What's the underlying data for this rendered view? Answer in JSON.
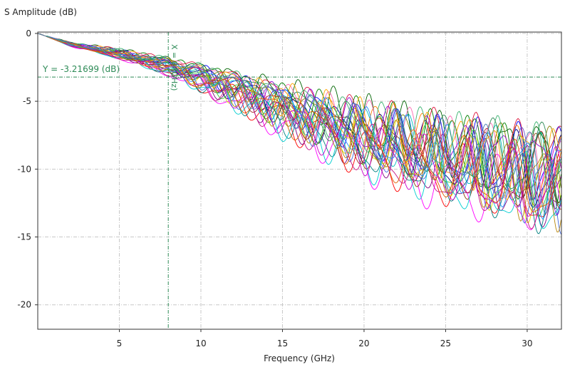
{
  "chart_data": {
    "type": "line",
    "ylabel": "S Amplitude (dB)",
    "xlabel": "Frequency (GHz)",
    "xlim": [
      0,
      32.1
    ],
    "ylim": [
      -21.8,
      0.1
    ],
    "xticks": [
      5,
      10,
      15,
      20,
      25,
      30
    ],
    "yticks": [
      0,
      -5,
      -10,
      -15,
      -20
    ],
    "grid": true,
    "legend": "none",
    "cursor": {
      "x": 8,
      "y": -3.21699,
      "y_label": "Y = -3.21699 (dB)",
      "x_label": "X = 8 (GHz)",
      "color": "#2e8b57"
    },
    "trend": [
      [
        0,
        0
      ],
      [
        2,
        -0.8
      ],
      [
        5,
        -1.5
      ],
      [
        8,
        -2.4
      ],
      [
        10,
        -3.2
      ],
      [
        12,
        -4.0
      ],
      [
        15,
        -5.4
      ],
      [
        18,
        -6.7
      ],
      [
        20,
        -7.6
      ],
      [
        25,
        -9.3
      ],
      [
        30,
        -10.3
      ],
      [
        32,
        -10.6
      ]
    ],
    "ripple_amplitude_db": [
      [
        0,
        0
      ],
      [
        8,
        0.3
      ],
      [
        12,
        0.8
      ],
      [
        20,
        1.6
      ],
      [
        30,
        2.4
      ],
      [
        32,
        2.6
      ]
    ],
    "series": [
      {
        "color": "#0000ff",
        "period": 2.4,
        "phase": 0.1,
        "offset": 0.6
      },
      {
        "color": "#ff0000",
        "period": 2.9,
        "phase": 1.3,
        "offset": -1.2
      },
      {
        "color": "#008000",
        "period": 2.2,
        "phase": 2.1,
        "offset": 0.9
      },
      {
        "color": "#ff00ff",
        "period": 3.1,
        "phase": 0.7,
        "offset": -1.6
      },
      {
        "color": "#00bfbf",
        "period": 2.6,
        "phase": 3.0,
        "offset": 0.2
      },
      {
        "color": "#e0e000",
        "period": 2.3,
        "phase": 4.2,
        "offset": -0.4
      },
      {
        "color": "#ff8000",
        "period": 2.8,
        "phase": 5.1,
        "offset": 0.4
      },
      {
        "color": "#800080",
        "period": 2.5,
        "phase": 1.9,
        "offset": -0.8
      },
      {
        "color": "#000080",
        "period": 2.7,
        "phase": 2.6,
        "offset": 0.0
      },
      {
        "color": "#006400",
        "period": 2.1,
        "phase": 3.7,
        "offset": 1.2
      },
      {
        "color": "#8b4513",
        "period": 3.0,
        "phase": 0.3,
        "offset": -0.2
      },
      {
        "color": "#ff69b4",
        "period": 2.4,
        "phase": 4.8,
        "offset": 0.7
      },
      {
        "color": "#008080",
        "period": 2.6,
        "phase": 5.7,
        "offset": -1.0
      },
      {
        "color": "#808000",
        "period": 2.9,
        "phase": 2.9,
        "offset": 0.3
      },
      {
        "color": "#4169e1",
        "period": 2.2,
        "phase": 0.9,
        "offset": -0.6
      },
      {
        "color": "#dc143c",
        "period": 2.5,
        "phase": 3.4,
        "offset": 1.0
      },
      {
        "color": "#32cd32",
        "period": 2.8,
        "phase": 4.5,
        "offset": -0.3
      },
      {
        "color": "#9400d3",
        "period": 2.3,
        "phase": 5.9,
        "offset": 0.5
      },
      {
        "color": "#00ced1",
        "period": 2.7,
        "phase": 1.1,
        "offset": -1.4
      },
      {
        "color": "#ffa500",
        "period": 2.0,
        "phase": 2.3,
        "offset": 0.8
      },
      {
        "color": "#a52a2a",
        "period": 3.2,
        "phase": 3.9,
        "offset": -0.1
      },
      {
        "color": "#1e90ff",
        "period": 2.4,
        "phase": 5.3,
        "offset": 0.1
      },
      {
        "color": "#cc00cc",
        "period": 2.6,
        "phase": 0.5,
        "offset": -0.9
      },
      {
        "color": "#2e8b57",
        "period": 2.9,
        "phase": 4.0,
        "offset": 0.6
      },
      {
        "color": "#b8860b",
        "period": 2.2,
        "phase": 1.6,
        "offset": -0.5
      },
      {
        "color": "#6a5acd",
        "period": 2.5,
        "phase": 2.8,
        "offset": 0.4
      },
      {
        "color": "#c71585",
        "period": 2.8,
        "phase": 5.5,
        "offset": -1.1
      },
      {
        "color": "#3cb371",
        "period": 2.3,
        "phase": 0.2,
        "offset": 0.9
      },
      {
        "color": "#e06000",
        "period": 3.0,
        "phase": 3.2,
        "offset": -0.7
      },
      {
        "color": "#4682b4",
        "period": 2.6,
        "phase": 4.6,
        "offset": 0.3
      }
    ]
  }
}
